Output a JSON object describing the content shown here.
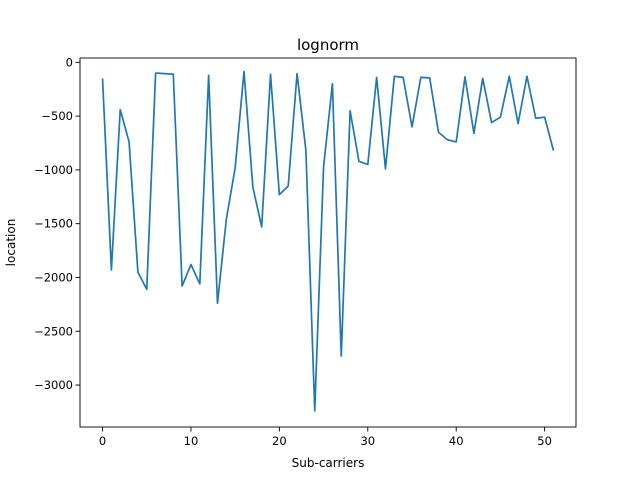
{
  "chart_data": {
    "type": "line",
    "title": "lognorm",
    "xlabel": "Sub-carriers",
    "ylabel": "location",
    "xlim": [
      -2.55,
      53.55
    ],
    "ylim": [
      -3390,
      40
    ],
    "xticks": [
      0,
      10,
      20,
      30,
      40,
      50
    ],
    "xtick_labels": [
      "0",
      "10",
      "20",
      "30",
      "40",
      "50"
    ],
    "yticks": [
      0,
      -500,
      -1000,
      -1500,
      -2000,
      -2500,
      -3000
    ],
    "ytick_labels": [
      "0",
      "−500",
      "−1000",
      "−1500",
      "−2000",
      "−2500",
      "−3000"
    ],
    "grid": false,
    "legend": "none",
    "line_color": "#1f77b4",
    "series": [
      {
        "x": [
          0,
          1,
          2,
          3,
          4,
          5,
          6,
          7,
          8,
          9,
          10,
          11,
          12,
          13,
          14,
          15,
          16,
          17,
          18,
          19,
          20,
          21,
          22,
          23,
          24,
          25,
          26,
          27,
          28,
          29,
          30,
          31,
          32,
          33,
          34,
          35,
          36,
          37,
          38,
          39,
          40,
          41,
          42,
          43,
          44,
          45,
          46,
          47,
          48,
          49,
          50,
          51
        ],
        "values": [
          -150,
          -1930,
          -440,
          -740,
          -1950,
          -2110,
          -100,
          -105,
          -110,
          -2080,
          -1880,
          -2060,
          -120,
          -2240,
          -1460,
          -980,
          -85,
          -1160,
          -1530,
          -110,
          -1230,
          -1150,
          -105,
          -820,
          -3240,
          -970,
          -200,
          -2730,
          -450,
          -920,
          -950,
          -140,
          -990,
          -130,
          -140,
          -600,
          -140,
          -145,
          -650,
          -720,
          -740,
          -135,
          -660,
          -150,
          -560,
          -510,
          -130,
          -570,
          -130,
          -520,
          -510,
          -820
        ]
      }
    ]
  }
}
